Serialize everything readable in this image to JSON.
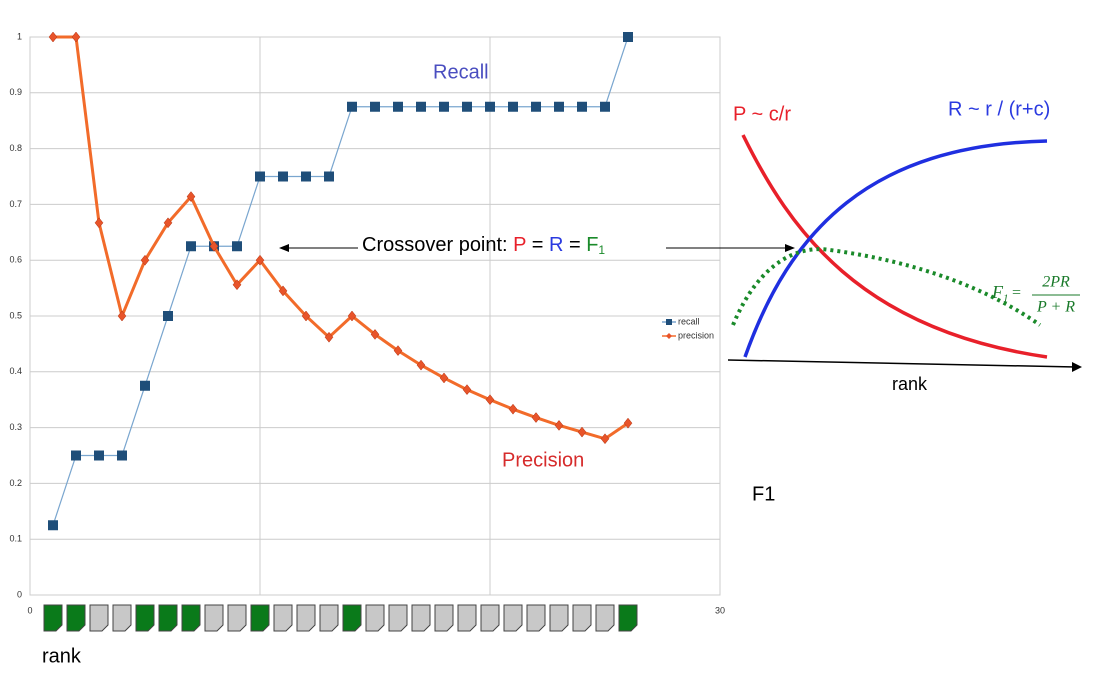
{
  "chart_data": {
    "type": "line",
    "x": [
      1,
      2,
      3,
      4,
      5,
      6,
      7,
      8,
      9,
      10,
      11,
      12,
      13,
      14,
      15,
      16,
      17,
      18,
      19,
      20,
      21,
      22,
      23,
      24,
      25,
      26
    ],
    "series": [
      {
        "name": "recall",
        "color": "#1f4e79",
        "line_color": "#7aa6cf",
        "marker": "square",
        "values": [
          0.125,
          0.25,
          0.25,
          0.25,
          0.375,
          0.5,
          0.625,
          0.625,
          0.625,
          0.75,
          0.75,
          0.75,
          0.75,
          0.875,
          0.875,
          0.875,
          0.875,
          0.875,
          0.875,
          0.875,
          0.875,
          0.875,
          0.875,
          0.875,
          0.875,
          1
        ]
      },
      {
        "name": "precision",
        "color": "#e8542a",
        "line_color": "#f26b2a",
        "marker": "diamond",
        "values": [
          1,
          1,
          0.667,
          0.5,
          0.6,
          0.667,
          0.714,
          0.625,
          0.556,
          0.6,
          0.545,
          0.5,
          0.462,
          0.5,
          0.467,
          0.438,
          0.412,
          0.389,
          0.368,
          0.35,
          0.333,
          0.318,
          0.304,
          0.292,
          0.28,
          0.308
        ]
      }
    ],
    "relevant": [
      true,
      true,
      false,
      false,
      true,
      true,
      true,
      false,
      false,
      true,
      false,
      false,
      false,
      true,
      false,
      false,
      false,
      false,
      false,
      false,
      false,
      false,
      false,
      false,
      false,
      true
    ],
    "xlim": [
      0,
      30
    ],
    "xticks": [
      0,
      10,
      20,
      30
    ],
    "ylim": [
      0,
      1
    ],
    "yticks": [
      0,
      0.1,
      0.2,
      0.3,
      0.4,
      0.5,
      0.6,
      0.7,
      0.8,
      0.9,
      1
    ],
    "grid": true,
    "x_label": "rank",
    "annotations": {
      "recall_label": "Recall",
      "precision_label": "Precision",
      "crossover": [
        "Crossover point: ",
        "P",
        " = ",
        "R",
        " = ",
        "F",
        "1"
      ]
    }
  },
  "diagram": {
    "p_label": "P ~ c/r",
    "r_label": "R ~ r / (r+c)",
    "axis_label": "rank",
    "f1_formula": [
      "F",
      "1",
      "=",
      "2PR",
      "P + R"
    ],
    "caption": "F1"
  }
}
